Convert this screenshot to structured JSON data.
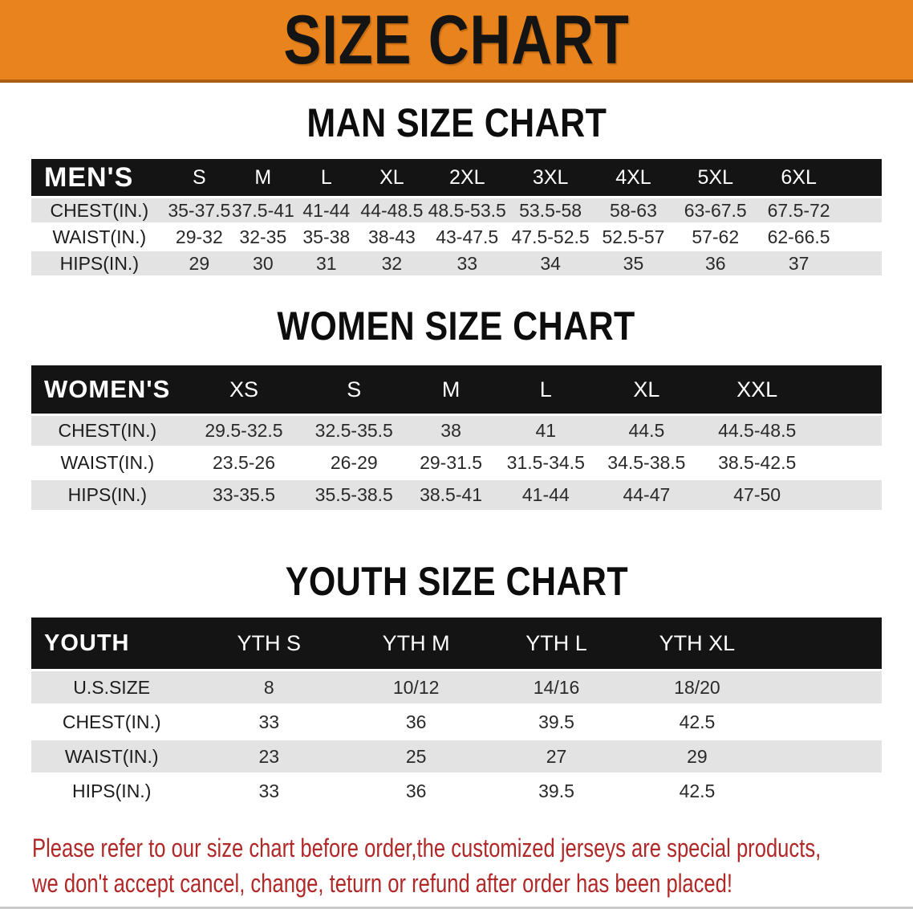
{
  "banner": {
    "title": "SIZE CHART",
    "bg_color": "#e8831d",
    "edge_color": "#aa5e0e"
  },
  "sections": {
    "men": {
      "heading": "MAN SIZE CHART",
      "group_label": "MEN'S",
      "sizes": [
        "S",
        "M",
        "L",
        "XL",
        "2XL",
        "3XL",
        "4XL",
        "5XL",
        "6XL"
      ],
      "rows": [
        {
          "label": "CHEST(IN.)",
          "values": [
            "35-37.5",
            "37.5-41",
            "41-44",
            "44-48.5",
            "48.5-53.5",
            "53.5-58",
            "58-63",
            "63-67.5",
            "67.5-72"
          ]
        },
        {
          "label": "WAIST(IN.)",
          "values": [
            "29-32",
            "32-35",
            "35-38",
            "38-43",
            "43-47.5",
            "47.5-52.5",
            "52.5-57",
            "57-62",
            "62-66.5"
          ]
        },
        {
          "label": "HIPS(IN.)",
          "values": [
            "29",
            "30",
            "31",
            "32",
            "33",
            "34",
            "35",
            "36",
            "37"
          ]
        }
      ]
    },
    "women": {
      "heading": "WOMEN SIZE CHART",
      "group_label": "WOMEN'S",
      "sizes": [
        "XS",
        "S",
        "M",
        "L",
        "XL",
        "XXL"
      ],
      "rows": [
        {
          "label": "CHEST(IN.)",
          "values": [
            "29.5-32.5",
            "32.5-35.5",
            "38",
            "41",
            "44.5",
            "44.5-48.5"
          ]
        },
        {
          "label": "WAIST(IN.)",
          "values": [
            "23.5-26",
            "26-29",
            "29-31.5",
            "31.5-34.5",
            "34.5-38.5",
            "38.5-42.5"
          ]
        },
        {
          "label": "HIPS(IN.)",
          "values": [
            "33-35.5",
            "35.5-38.5",
            "38.5-41",
            "41-44",
            "44-47",
            "47-50"
          ]
        }
      ]
    },
    "youth": {
      "heading": "YOUTH SIZE CHART",
      "group_label": "YOUTH",
      "sizes": [
        "YTH S",
        "YTH M",
        "YTH L",
        "YTH XL"
      ],
      "rows": [
        {
          "label": "U.S.SIZE",
          "values": [
            "8",
            "10/12",
            "14/16",
            "18/20"
          ]
        },
        {
          "label": "CHEST(IN.)",
          "values": [
            "33",
            "36",
            "39.5",
            "42.5"
          ]
        },
        {
          "label": "WAIST(IN.)",
          "values": [
            "23",
            "25",
            "27",
            "29"
          ]
        },
        {
          "label": "HIPS(IN.)",
          "values": [
            "33",
            "36",
            "39.5",
            "42.5"
          ]
        }
      ]
    }
  },
  "disclaimer": {
    "line1": "Please refer to our size chart before order,the customized jerseys are special products,",
    "line2": "we don't accept cancel, change, teturn or refund after order has been placed!",
    "color": "#b02828"
  },
  "table_colors": {
    "header_bg": "#141414",
    "header_text": "#ffffff",
    "row_alt_bg": "#e3e3e3",
    "row_bg": "#ffffff"
  }
}
